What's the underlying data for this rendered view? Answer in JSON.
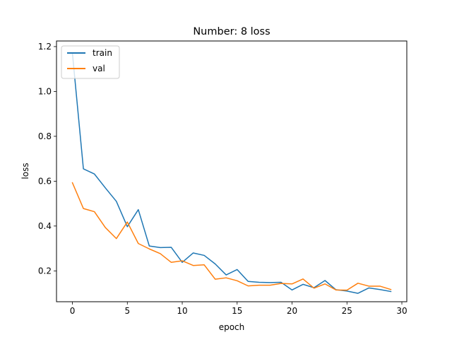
{
  "chart_data": {
    "type": "line",
    "title": "Number: 8 loss",
    "xlabel": "epoch",
    "ylabel": "loss",
    "xlim": [
      -1.45,
      30.45
    ],
    "ylim": [
      0.0625,
      1.225
    ],
    "xticks": [
      0,
      5,
      10,
      15,
      20,
      25,
      30
    ],
    "yticks": [
      0.2,
      0.4,
      0.6,
      0.8,
      1.0,
      1.2
    ],
    "ytick_labels": [
      "0.2",
      "0.4",
      "0.6",
      "0.8",
      "1.0",
      "1.2"
    ],
    "grid": false,
    "legend_position": "top-left",
    "x": [
      0,
      1,
      2,
      3,
      4,
      5,
      6,
      7,
      8,
      9,
      10,
      11,
      12,
      13,
      14,
      15,
      16,
      17,
      18,
      19,
      20,
      21,
      22,
      23,
      24,
      25,
      26,
      27,
      28,
      29
    ],
    "series": [
      {
        "name": "train",
        "color": "#1f77b4",
        "values": [
          1.17,
          0.655,
          0.632,
          0.57,
          0.51,
          0.397,
          0.473,
          0.311,
          0.304,
          0.305,
          0.238,
          0.28,
          0.269,
          0.231,
          0.182,
          0.206,
          0.153,
          0.149,
          0.148,
          0.149,
          0.115,
          0.14,
          0.125,
          0.157,
          0.116,
          0.11,
          0.1,
          0.124,
          0.117,
          0.108
        ]
      },
      {
        "name": "val",
        "color": "#ff7f0e",
        "values": [
          0.593,
          0.478,
          0.464,
          0.393,
          0.344,
          0.418,
          0.322,
          0.298,
          0.277,
          0.238,
          0.245,
          0.224,
          0.227,
          0.163,
          0.169,
          0.156,
          0.133,
          0.136,
          0.136,
          0.144,
          0.142,
          0.164,
          0.123,
          0.142,
          0.115,
          0.114,
          0.145,
          0.132,
          0.132,
          0.117
        ]
      }
    ]
  }
}
